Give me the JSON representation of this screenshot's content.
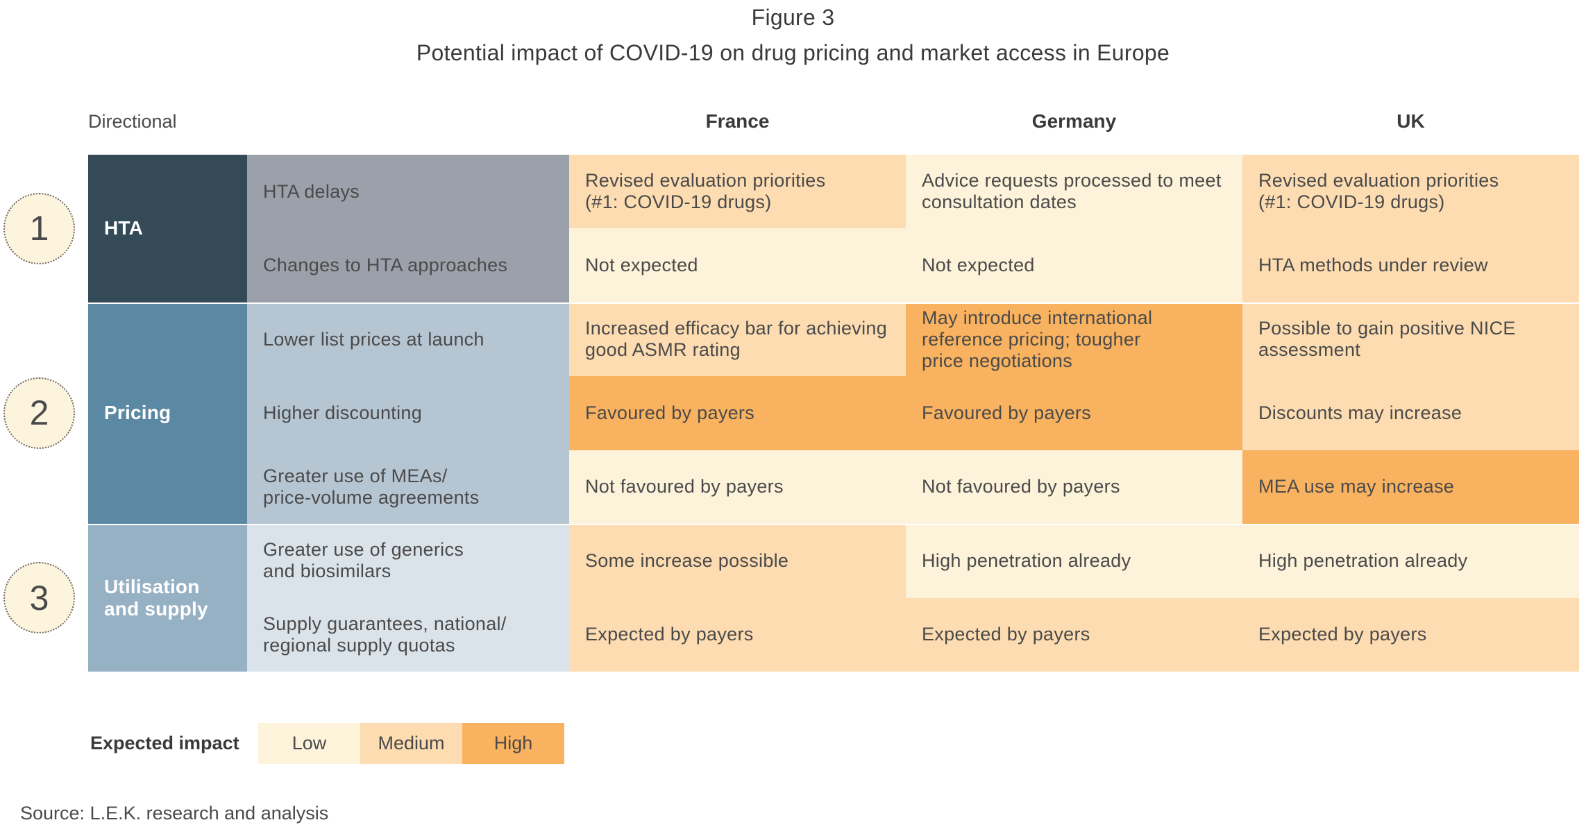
{
  "chart_data": {
    "type": "table",
    "figure_label": "Figure 3",
    "title": "Potential impact of COVID-19 on drug pricing and market access in Europe",
    "row_header_label": "Directional",
    "columns": [
      "France",
      "Germany",
      "UK"
    ],
    "sections": [
      {
        "number": "1",
        "name": "HTA",
        "rows": [
          {
            "label": "HTA delays",
            "cells": [
              {
                "text": "Revised evaluation priorities\n(#1: COVID-19 drugs)",
                "impact": "Medium"
              },
              {
                "text": "Advice requests processed to meet\nconsultation dates",
                "impact": "Low"
              },
              {
                "text": "Revised evaluation priorities\n(#1: COVID-19 drugs)",
                "impact": "Medium"
              }
            ]
          },
          {
            "label": "Changes to HTA approaches",
            "cells": [
              {
                "text": "Not expected",
                "impact": "Low"
              },
              {
                "text": "Not expected",
                "impact": "Low"
              },
              {
                "text": "HTA methods under review",
                "impact": "Medium"
              }
            ]
          }
        ]
      },
      {
        "number": "2",
        "name": "Pricing",
        "rows": [
          {
            "label": "Lower list prices at launch",
            "cells": [
              {
                "text": "Increased efficacy bar for achieving\ngood ASMR rating",
                "impact": "Medium"
              },
              {
                "text": "May introduce international\nreference pricing; tougher\nprice negotiations",
                "impact": "High"
              },
              {
                "text": "Possible to gain positive NICE\nassessment",
                "impact": "Medium"
              }
            ]
          },
          {
            "label": "Higher discounting",
            "cells": [
              {
                "text": "Favoured by payers",
                "impact": "High"
              },
              {
                "text": "Favoured by payers",
                "impact": "High"
              },
              {
                "text": "Discounts may increase",
                "impact": "Medium"
              }
            ]
          },
          {
            "label": "Greater use of MEAs/\nprice-volume agreements",
            "cells": [
              {
                "text": "Not favoured by payers",
                "impact": "Low"
              },
              {
                "text": "Not favoured by payers",
                "impact": "Low"
              },
              {
                "text": "MEA use may increase",
                "impact": "High"
              }
            ]
          }
        ]
      },
      {
        "number": "3",
        "name": "Utilisation\nand supply",
        "rows": [
          {
            "label": "Greater use of generics\nand biosimilars",
            "cells": [
              {
                "text": "Some increase possible",
                "impact": "Medium"
              },
              {
                "text": "High penetration already",
                "impact": "Low"
              },
              {
                "text": "High penetration already",
                "impact": "Low"
              }
            ]
          },
          {
            "label": "Supply guarantees, national/\nregional supply quotas",
            "cells": [
              {
                "text": "Expected by payers",
                "impact": "Medium"
              },
              {
                "text": "Expected by payers",
                "impact": "Medium"
              },
              {
                "text": "Expected by payers",
                "impact": "Medium"
              }
            ]
          }
        ]
      }
    ],
    "legend": {
      "title": "Expected impact",
      "levels": [
        {
          "label": "Low",
          "color": "#fdf2da"
        },
        {
          "label": "Medium",
          "color": "#fddcb1"
        },
        {
          "label": "High",
          "color": "#f9b25f"
        }
      ]
    },
    "source": "Source: L.E.K. research and analysis"
  },
  "colors": {
    "circle_fill": "#fdf4de",
    "sections": [
      {
        "category": "#344a57",
        "subcategory": "#9ca0aa"
      },
      {
        "category": "#5b88a2",
        "subcategory": "#b6c5d2"
      },
      {
        "category": "#97b1c4",
        "subcategory": "#dbe3ea"
      }
    ]
  }
}
